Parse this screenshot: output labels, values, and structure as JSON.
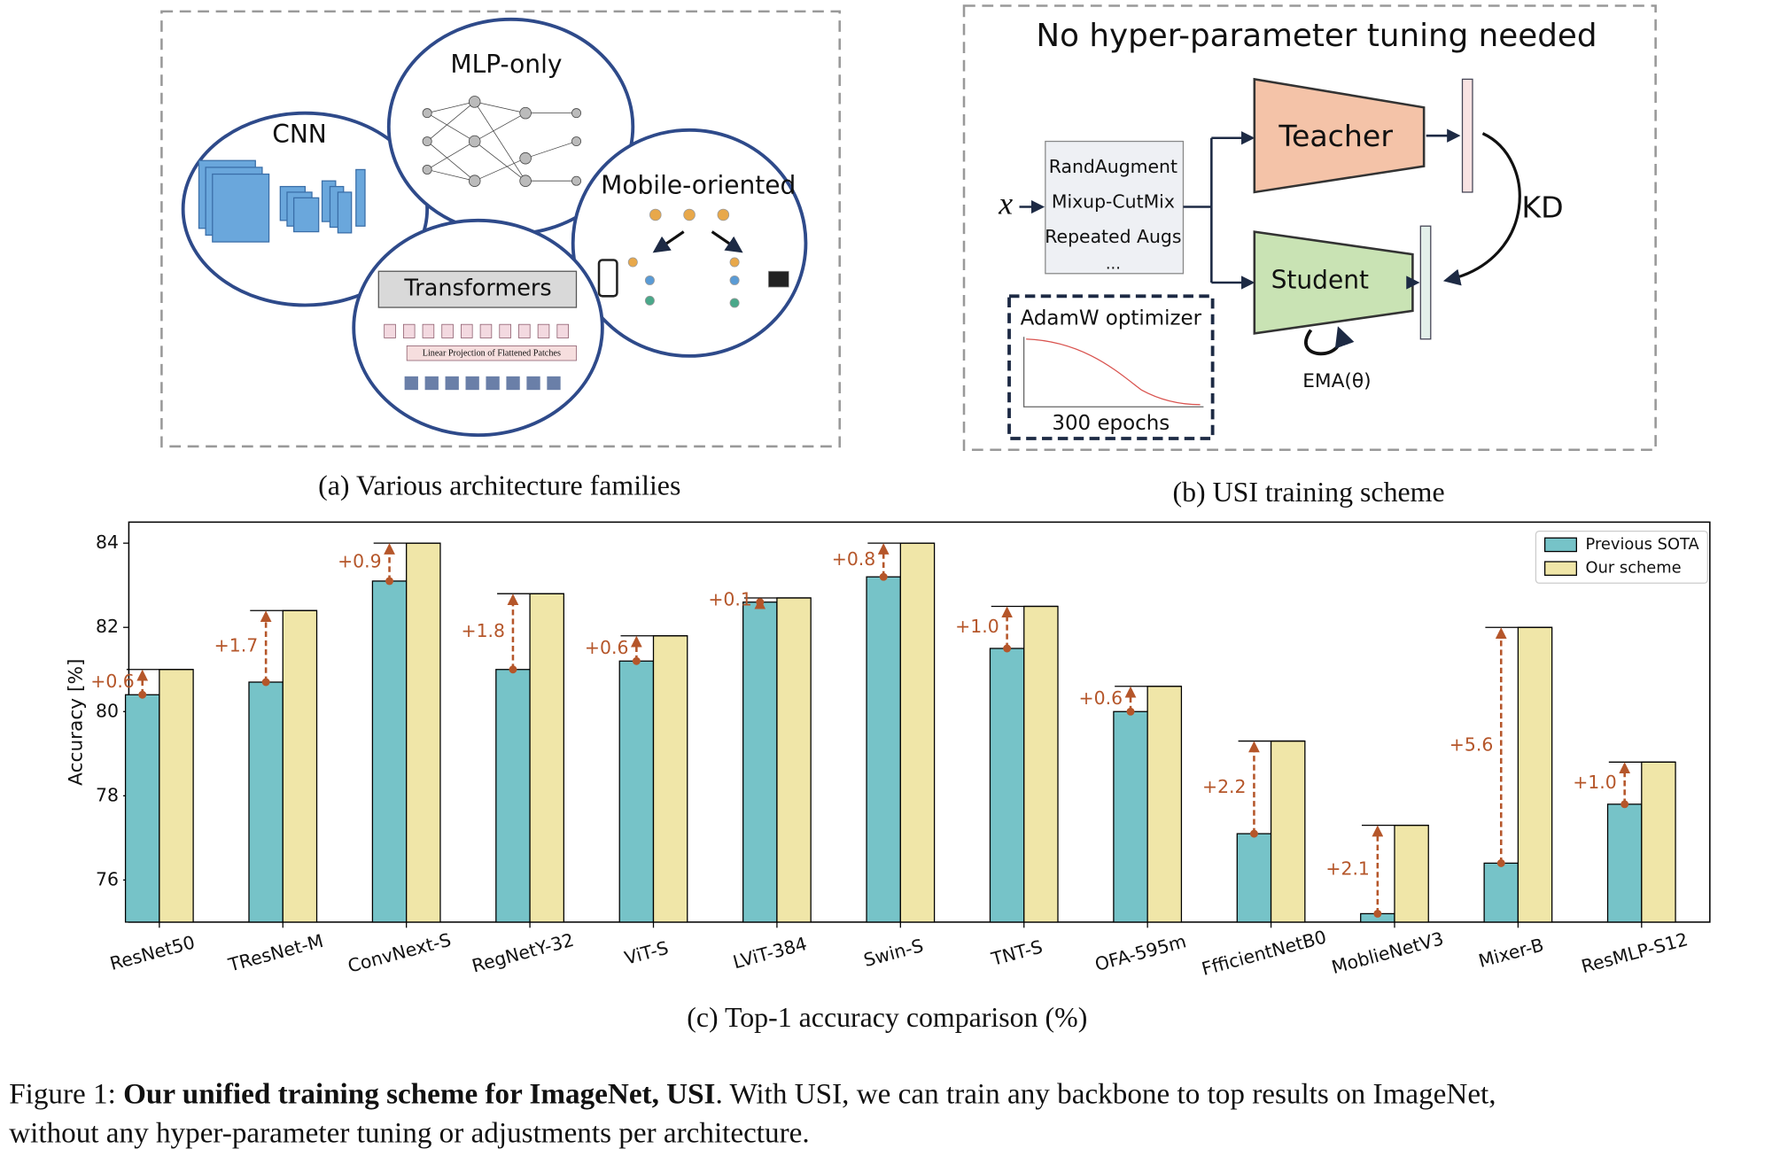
{
  "panel_a": {
    "labels": [
      "CNN",
      "MLP-only",
      "Mobile-oriented",
      "Transformers"
    ],
    "patch_text": "Linear Projection of Flattened Patches",
    "caption": "(a) Various architecture families"
  },
  "panel_b": {
    "title": "No hyper-parameter tuning needed",
    "input": "x",
    "augmentations": [
      "RandAugment",
      "Mixup-CutMix",
      "Repeated Augs",
      "..."
    ],
    "teacher": "Teacher",
    "student": "Student",
    "kd": "KD",
    "ema": "EMA(θ)",
    "optimizer": "AdamW optimizer",
    "epochs": "300 epochs",
    "caption": "(b) USI training scheme"
  },
  "chart_data": {
    "type": "bar",
    "categories": [
      "ResNet50",
      "TResNet-M",
      "ConvNext-S",
      "RegNetY-32",
      "ViT-S",
      "LViT-384",
      "Swin-S",
      "TNT-S",
      "OFA-595m",
      "FfficientNetB0",
      "MoblieNetV3",
      "Mixer-B",
      "ResMLP-S12"
    ],
    "series": [
      {
        "name": "Previous SOTA",
        "color": "#76c3c8",
        "values": [
          80.4,
          80.7,
          83.1,
          81.0,
          81.2,
          82.6,
          83.2,
          81.5,
          80.0,
          77.1,
          75.2,
          76.4,
          77.8
        ]
      },
      {
        "name": "Our scheme",
        "color": "#f0e6a8",
        "values": [
          81.0,
          82.4,
          84.0,
          82.8,
          81.8,
          82.7,
          84.0,
          82.5,
          80.6,
          79.3,
          77.3,
          82.0,
          78.8
        ]
      }
    ],
    "gain_labels": [
      "+0.6",
      "+1.7",
      "+0.9",
      "+1.8",
      "+0.6",
      "+0.1",
      "+0.8",
      "+1.0",
      "+0.6",
      "+2.2",
      "+2.1",
      "+5.6",
      "+1.0"
    ],
    "gain_color": "#b5562a",
    "ylabel": "Accuracy [%]",
    "ylim": [
      75,
      84.5
    ],
    "yticks": [
      76,
      78,
      80,
      82,
      84
    ],
    "legend": "upper right",
    "caption": "(c) Top-1 accuracy comparison (%)"
  },
  "figure_caption": {
    "label": "Figure 1: ",
    "bold": "Our unified training scheme for ImageNet, USI",
    "line1_rest": ". With USI, we can train any backbone to top results on ImageNet,",
    "line2": "without any hyper-parameter tuning or adjustments per architecture."
  }
}
